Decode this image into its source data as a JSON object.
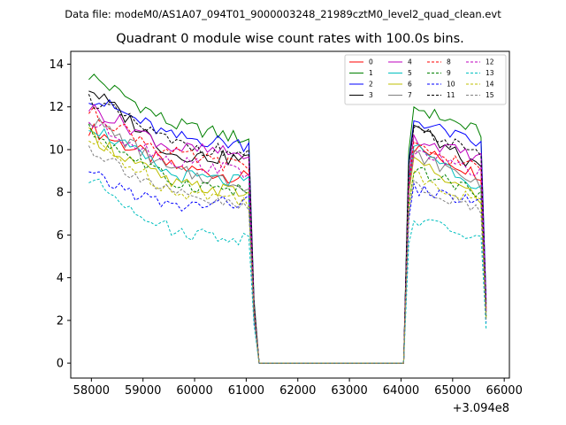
{
  "header": {
    "data_file": "Data file: modeM0/AS1A07_094T01_9000003248_21989cztM0_level2_quad_clean.evt"
  },
  "chart_data": {
    "type": "line",
    "title": "Quadrant 0 module wise count rates with 100.0s bins.",
    "xlabel": "",
    "ylabel": "",
    "x_offset_label": "+3.094e8",
    "xlim": [
      57600,
      66100
    ],
    "ylim": [
      -0.7,
      14.6
    ],
    "xticks": [
      58000,
      59000,
      60000,
      61000,
      62000,
      63000,
      64000,
      65000,
      66000
    ],
    "yticks": [
      0,
      2,
      4,
      6,
      8,
      10,
      12,
      14
    ],
    "legend_location": "top-right",
    "segment1": {
      "x_start": 57950,
      "x_end": 61150,
      "step": 100
    },
    "gap": {
      "x_start": 61250,
      "x_end": 64050,
      "value": 0
    },
    "segment2": {
      "x_start": 64150,
      "x_end": 65550,
      "step": 100
    },
    "series": [
      {
        "name": "0",
        "color": "#ff0000",
        "dash": "solid",
        "start": 11.0,
        "mid": 9.2,
        "end": 8.6,
        "drop": 2.6,
        "post_peak": 10.2,
        "post_end": 8.8,
        "final": 2.6
      },
      {
        "name": "1",
        "color": "#008000",
        "dash": "solid",
        "start": 13.5,
        "mid": 11.2,
        "end": 10.4,
        "drop": 3.0,
        "post_peak": 12.1,
        "post_end": 10.8,
        "final": 2.8
      },
      {
        "name": "2",
        "color": "#0000ff",
        "dash": "solid",
        "start": 12.5,
        "mid": 10.6,
        "end": 10.2,
        "drop": 2.8,
        "post_peak": 11.5,
        "post_end": 10.2,
        "final": 2.9
      },
      {
        "name": "3",
        "color": "#000000",
        "dash": "solid",
        "start": 12.9,
        "mid": 9.8,
        "end": 9.5,
        "drop": 2.7,
        "post_peak": 11.3,
        "post_end": 9.0,
        "final": 2.4
      },
      {
        "name": "4",
        "color": "#bf00bf",
        "dash": "solid",
        "start": 12.0,
        "mid": 10.1,
        "end": 9.7,
        "drop": 2.6,
        "post_peak": 10.6,
        "post_end": 9.6,
        "final": 2.5
      },
      {
        "name": "5",
        "color": "#00bfbf",
        "dash": "solid",
        "start": 11.2,
        "mid": 8.8,
        "end": 8.4,
        "drop": 2.5,
        "post_peak": 10.4,
        "post_end": 8.2,
        "final": 2.2
      },
      {
        "name": "6",
        "color": "#bfbf00",
        "dash": "solid",
        "start": 10.7,
        "mid": 8.4,
        "end": 7.9,
        "drop": 2.4,
        "post_peak": 9.6,
        "post_end": 7.7,
        "final": 2.1
      },
      {
        "name": "7",
        "color": "#808080",
        "dash": "solid",
        "start": 11.5,
        "mid": 9.0,
        "end": 8.3,
        "drop": 2.5,
        "post_peak": 9.9,
        "post_end": 8.4,
        "final": 2.3
      },
      {
        "name": "8",
        "color": "#ff0000",
        "dash": "dashed",
        "start": 11.8,
        "mid": 9.8,
        "end": 9.1,
        "drop": 2.6,
        "post_peak": 10.2,
        "post_end": 9.1,
        "final": 2.5
      },
      {
        "name": "9",
        "color": "#008000",
        "dash": "dashed",
        "start": 10.9,
        "mid": 8.5,
        "end": 8.0,
        "drop": 2.4,
        "post_peak": 9.1,
        "post_end": 8.0,
        "final": 2.2
      },
      {
        "name": "10",
        "color": "#0000ff",
        "dash": "dashed",
        "start": 8.8,
        "mid": 7.3,
        "end": 7.6,
        "drop": 2.0,
        "post_peak": 8.2,
        "post_end": 7.5,
        "final": 1.9
      },
      {
        "name": "11",
        "color": "#000000",
        "dash": "dashed",
        "start": 12.4,
        "mid": 10.3,
        "end": 9.7,
        "drop": 2.7,
        "post_peak": 11.3,
        "post_end": 9.6,
        "final": 2.7
      },
      {
        "name": "12",
        "color": "#bf00bf",
        "dash": "dashed",
        "start": 11.3,
        "mid": 9.5,
        "end": 8.9,
        "drop": 2.5,
        "post_peak": 10.0,
        "post_end": 8.9,
        "final": 2.4
      },
      {
        "name": "13",
        "color": "#00bfbf",
        "dash": "dashed",
        "start": 8.6,
        "mid": 6.2,
        "end": 5.8,
        "drop": 1.8,
        "post_peak": 6.8,
        "post_end": 5.8,
        "final": 1.6
      },
      {
        "name": "14",
        "color": "#bfbf00",
        "dash": "dashed",
        "start": 10.4,
        "mid": 8.1,
        "end": 7.6,
        "drop": 2.3,
        "post_peak": 8.9,
        "post_end": 7.5,
        "final": 2.1
      },
      {
        "name": "15",
        "color": "#808080",
        "dash": "dashed",
        "start": 10.1,
        "mid": 7.9,
        "end": 7.2,
        "drop": 2.2,
        "post_peak": 8.5,
        "post_end": 7.1,
        "final": 2.0
      }
    ]
  }
}
